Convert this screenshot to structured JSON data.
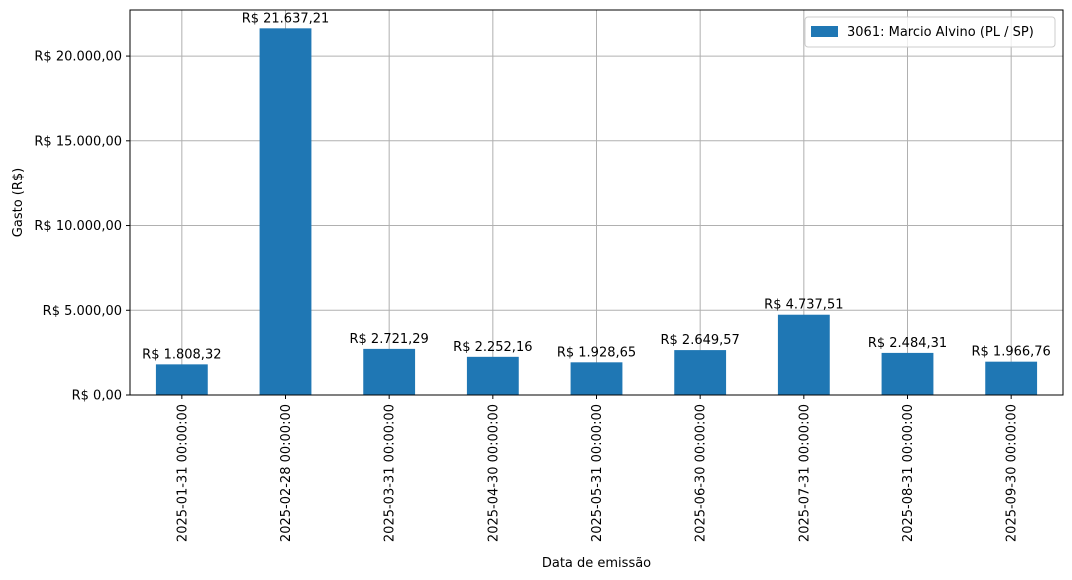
{
  "chart_data": {
    "type": "bar",
    "title": "",
    "xlabel": "Data de emissão",
    "ylabel": "Gasto (R$)",
    "categories": [
      "2025-01-31 00:00:00",
      "2025-02-28 00:00:00",
      "2025-03-31 00:00:00",
      "2025-04-30 00:00:00",
      "2025-05-31 00:00:00",
      "2025-06-30 00:00:00",
      "2025-07-31 00:00:00",
      "2025-08-31 00:00:00",
      "2025-09-30 00:00:00"
    ],
    "series": [
      {
        "name": "3061: Marcio Alvino (PL / SP)",
        "color": "#1f77b4",
        "values": [
          1808.32,
          21637.21,
          2721.29,
          2252.16,
          1928.65,
          2649.57,
          4737.51,
          2484.31,
          1966.76
        ],
        "data_labels": [
          "R$ 1.808,32",
          "R$ 21.637,21",
          "R$ 2.721,29",
          "R$ 2.252,16",
          "R$ 1.928,65",
          "R$ 2.649,57",
          "R$ 4.737,51",
          "R$ 2.484,31",
          "R$ 1.966,76"
        ]
      }
    ],
    "yticks": [
      0,
      5000,
      10000,
      15000,
      20000
    ],
    "ytick_labels": [
      "R$ 0,00",
      "R$ 5.000,00",
      "R$ 10.000,00",
      "R$ 15.000,00",
      "R$ 20.000,00"
    ],
    "ylim": [
      0,
      22719
    ],
    "grid": true,
    "legend_position": "top-right"
  }
}
